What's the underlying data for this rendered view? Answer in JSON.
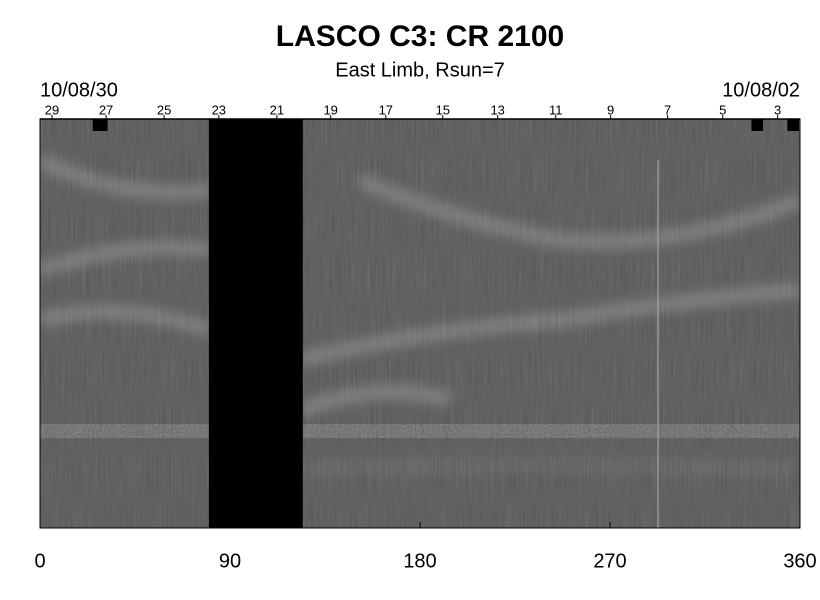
{
  "chart_data": {
    "type": "synoptic-map",
    "title": "LASCO C3: CR 2100",
    "subtitle": "East Limb, Rsun=7",
    "start_date": "10/08/30",
    "end_date": "10/08/02",
    "xlim": [
      0,
      360
    ],
    "xticks": [
      0,
      90,
      180,
      270,
      360
    ],
    "top_ticks": [
      {
        "value": 5.7,
        "label": "29"
      },
      {
        "value": 31.3,
        "label": "27"
      },
      {
        "value": 58.8,
        "label": "25"
      },
      {
        "value": 84.7,
        "label": "23"
      },
      {
        "value": 112.2,
        "label": "21"
      },
      {
        "value": 137.7,
        "label": "19"
      },
      {
        "value": 163.8,
        "label": "17"
      },
      {
        "value": 190.8,
        "label": "15"
      },
      {
        "value": 216.8,
        "label": "13"
      },
      {
        "value": 244.3,
        "label": "11"
      },
      {
        "value": 270.3,
        "label": "9"
      },
      {
        "value": 297.3,
        "label": "7"
      },
      {
        "value": 323.4,
        "label": "5"
      },
      {
        "value": 349.4,
        "label": "3"
      }
    ],
    "data_gaps": [
      [
        80,
        124.5
      ]
    ],
    "missing_markers": [
      [
        25,
        32
      ],
      [
        337,
        342.5
      ],
      [
        354,
        359.5
      ]
    ]
  }
}
